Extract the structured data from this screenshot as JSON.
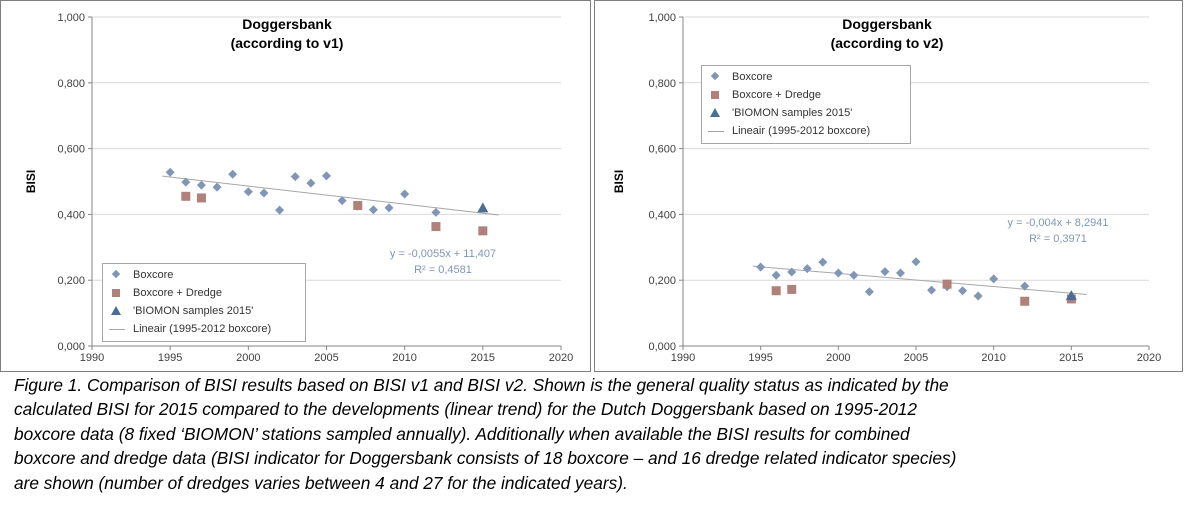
{
  "chart_data": [
    {
      "type": "scatter",
      "title": [
        "Doggersbank",
        "(according to v1)"
      ],
      "xlabel": "",
      "ylabel": "BISI",
      "xlim": [
        1990,
        2020
      ],
      "ylim": [
        0,
        1
      ],
      "x_ticks": [
        "1990",
        "1995",
        "2000",
        "2005",
        "2010",
        "2015",
        "2020"
      ],
      "y_ticks": [
        "0,000",
        "0,200",
        "0,400",
        "0,600",
        "0,800",
        "1,000"
      ],
      "grid": "horizontal",
      "legend_position": "bottom-left",
      "series": [
        {
          "name": "Boxcore",
          "marker": "diamond",
          "color": "#8096b4",
          "x": [
            1995,
            1996,
            1997,
            1998,
            1999,
            2000,
            2001,
            2002,
            2003,
            2004,
            2005,
            2006,
            2007,
            2008,
            2009,
            2010,
            2012
          ],
          "y": [
            0.528,
            0.498,
            0.489,
            0.483,
            0.522,
            0.469,
            0.465,
            0.413,
            0.515,
            0.495,
            0.517,
            0.442,
            0.425,
            0.414,
            0.42,
            0.462,
            0.406
          ]
        },
        {
          "name": "Boxcore + Dredge",
          "marker": "square",
          "color": "#b0807a",
          "x": [
            1996,
            1997,
            2007,
            2012,
            2015
          ],
          "y": [
            0.455,
            0.45,
            0.427,
            0.363,
            0.35
          ]
        },
        {
          "name": "'BIOMON samples 2015'",
          "marker": "triangle",
          "color": "#4a6e96",
          "x": [
            2015
          ],
          "y": [
            0.42
          ]
        },
        {
          "name": "Lineair (1995-2012 boxcore)",
          "type": "line",
          "color": "#a6a6a6",
          "x": [
            1994.5,
            2016
          ],
          "y": [
            0.5164,
            0.3981
          ]
        }
      ],
      "trend_equation": "y = -0,0055x + 11,407",
      "r_squared": "R² = 0,4581"
    },
    {
      "type": "scatter",
      "title": [
        "Doggersbank",
        "(according to v2)"
      ],
      "xlabel": "",
      "ylabel": "BISI",
      "xlim": [
        1990,
        2020
      ],
      "ylim": [
        0,
        1
      ],
      "x_ticks": [
        "1990",
        "1995",
        "2000",
        "2005",
        "2010",
        "2015",
        "2020"
      ],
      "y_ticks": [
        "0,000",
        "0,200",
        "0,400",
        "0,600",
        "0,800",
        "1,000"
      ],
      "grid": "horizontal",
      "legend_position": "top-left",
      "series": [
        {
          "name": "Boxcore",
          "marker": "diamond",
          "color": "#8096b4",
          "x": [
            1995,
            1996,
            1997,
            1998,
            1999,
            2000,
            2001,
            2002,
            2003,
            2004,
            2005,
            2006,
            2007,
            2008,
            2009,
            2010,
            2012
          ],
          "y": [
            0.24,
            0.215,
            0.225,
            0.235,
            0.255,
            0.222,
            0.215,
            0.165,
            0.226,
            0.222,
            0.256,
            0.17,
            0.18,
            0.168,
            0.152,
            0.204,
            0.182
          ]
        },
        {
          "name": "Boxcore + Dredge",
          "marker": "square",
          "color": "#b0807a",
          "x": [
            1996,
            1997,
            2007,
            2012,
            2015
          ],
          "y": [
            0.168,
            0.172,
            0.188,
            0.136,
            0.143
          ]
        },
        {
          "name": "'BIOMON samples 2015'",
          "marker": "triangle",
          "color": "#4a6e96",
          "x": [
            2015
          ],
          "y": [
            0.153
          ]
        },
        {
          "name": "Lineair (1995-2012 boxcore)",
          "type": "line",
          "color": "#a6a6a6",
          "x": [
            1994.5,
            2016
          ],
          "y": [
            0.2426,
            0.1566
          ]
        }
      ],
      "trend_equation": "y = -0,004x + 8,2941",
      "r_squared": "R² = 0,3971"
    }
  ],
  "caption": {
    "lines": [
      "Figure 1. Comparison of BISI results based on BISI v1 and BISI v2. Shown is the general quality status as indicated by the",
      "calculated BISI for 2015 compared to the developments (linear trend) for the Dutch Doggersbank based on 1995-2012",
      "boxcore data (8 fixed ‘BIOMON’ stations sampled annually). Additionally when available the BISI results for combined",
      "boxcore and dredge data (BISI indicator for Doggersbank consists  of 18 boxcore – and 16 dredge related indicator species)",
      "are shown (number of dredges varies between 4 and 27 for the indicated years)."
    ]
  }
}
